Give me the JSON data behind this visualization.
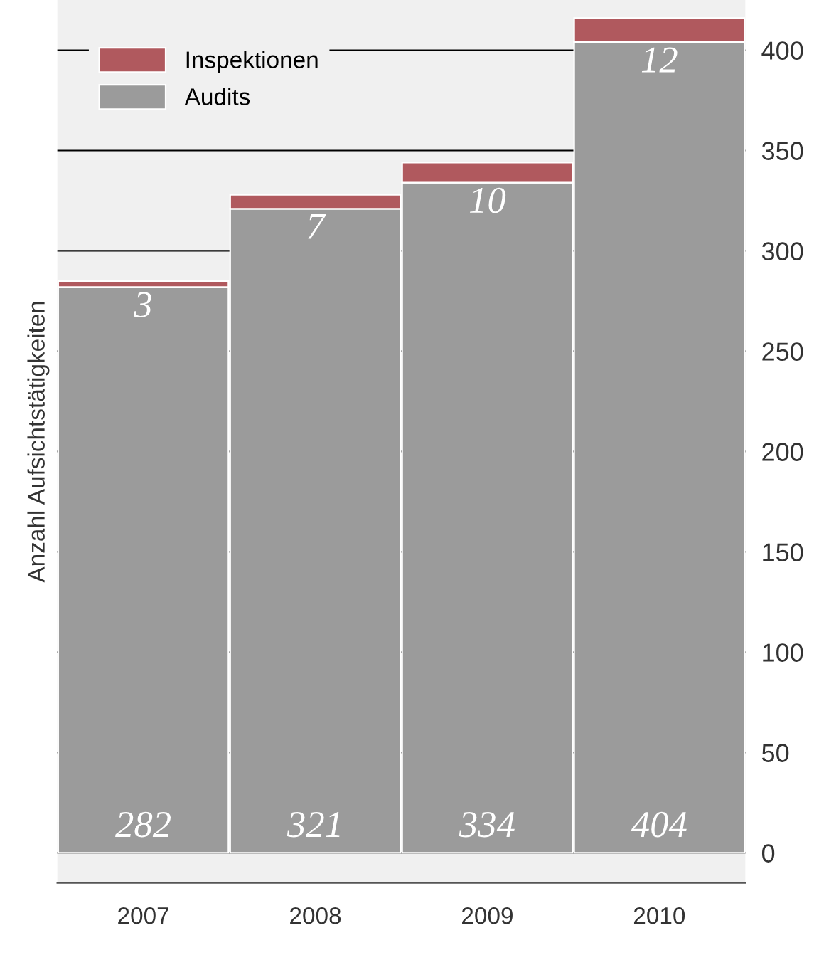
{
  "chart_data": {
    "type": "bar",
    "stacked": true,
    "ylabel": "Anzahl Aufsichtstätigkeiten",
    "categories": [
      "2007",
      "2008",
      "2009",
      "2010"
    ],
    "series": [
      {
        "name": "Audits",
        "color": "#9b9b9b",
        "values": [
          282,
          321,
          334,
          404
        ]
      },
      {
        "name": "Inspektionen",
        "color": "#b0595e",
        "values": [
          3,
          7,
          10,
          12
        ]
      }
    ],
    "ylim": [
      -15,
      425
    ],
    "yticks": [
      0,
      50,
      100,
      150,
      200,
      250,
      300,
      350,
      400
    ],
    "grid": "y",
    "legend": "top left",
    "data_labels": true
  }
}
